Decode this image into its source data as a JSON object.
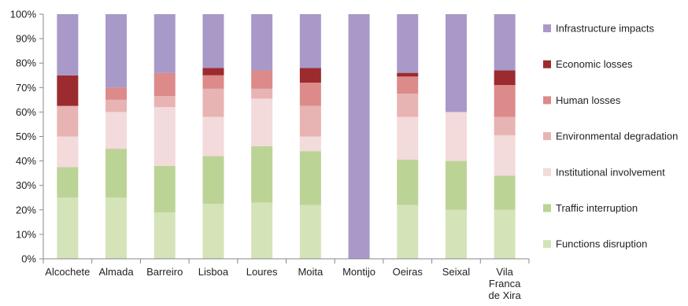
{
  "chart_data": {
    "type": "bar",
    "stacked": true,
    "categories": [
      "Alcochete",
      "Almada",
      "Barreiro",
      "Lisboa",
      "Loures",
      "Moita",
      "Montijo",
      "Oeiras",
      "Seixal",
      "Vila Franca de Xira"
    ],
    "category_lines": [
      [
        "Alcochete"
      ],
      [
        "Almada"
      ],
      [
        "Barreiro"
      ],
      [
        "Lisboa"
      ],
      [
        "Loures"
      ],
      [
        "Moita"
      ],
      [
        "Montijo"
      ],
      [
        "Oeiras"
      ],
      [
        "Seixal"
      ],
      [
        "Vila",
        "Franca",
        "de Xira"
      ]
    ],
    "ylim": [
      0,
      100
    ],
    "yticks": [
      "0%",
      "10%",
      "20%",
      "30%",
      "40%",
      "50%",
      "60%",
      "70%",
      "80%",
      "90%",
      "100%"
    ],
    "legend_position": "right",
    "series": [
      {
        "name": "Functions disruption",
        "color": "#d5e3b9",
        "values": [
          25,
          25,
          19,
          22.5,
          23,
          22,
          0,
          22,
          20,
          20
        ]
      },
      {
        "name": "Traffic interruption",
        "color": "#bcd396",
        "values": [
          12.5,
          20,
          19,
          19.5,
          23,
          22,
          0,
          18.5,
          20,
          14
        ]
      },
      {
        "name": "Institutional involvement",
        "color": "#f3dadb",
        "values": [
          12.5,
          15,
          24,
          16,
          19.5,
          6,
          0,
          17.5,
          20,
          16.5
        ]
      },
      {
        "name": "Environmental degradation",
        "color": "#e8b3b3",
        "values": [
          12.5,
          5,
          4.5,
          11.5,
          4,
          12.5,
          0,
          9.5,
          0,
          7.5
        ]
      },
      {
        "name": "Human losses",
        "color": "#dc8a8a",
        "values": [
          0,
          5,
          9.5,
          5.5,
          7.5,
          9.5,
          0,
          7,
          0,
          13
        ]
      },
      {
        "name": "Economic losses",
        "color": "#9b2b2e",
        "values": [
          12.5,
          0,
          0,
          3,
          0,
          6,
          0,
          1.5,
          0,
          6
        ]
      },
      {
        "name": "Infrastructure impacts",
        "color": "#a899c9",
        "values": [
          25,
          30,
          24,
          22,
          23,
          22,
          100,
          24,
          40,
          23
        ]
      }
    ]
  }
}
